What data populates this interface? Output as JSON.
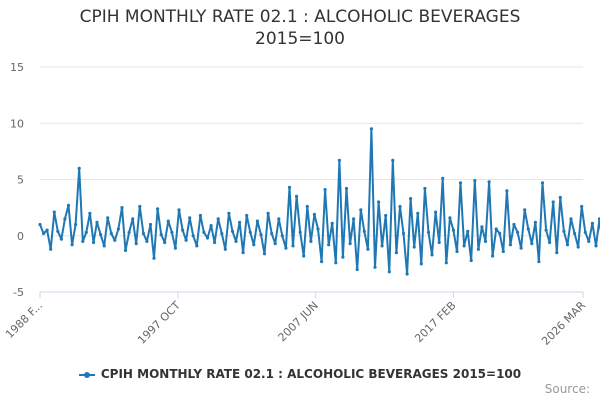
{
  "chart_data": {
    "type": "line",
    "title_line1": "CPIH MONTHLY RATE 02.1 : ALCOHOLIC BEVERAGES",
    "title_line2": "2015=100",
    "xlabel": "",
    "ylabel": "",
    "ylim": [
      -5,
      15
    ],
    "y_ticks": [
      -5,
      0,
      5,
      10,
      15
    ],
    "x_range": [
      1988.08,
      2026.17
    ],
    "x_ticks": [
      {
        "label": "1988 F...",
        "value": 1988.08
      },
      {
        "label": "1997 OCT",
        "value": 1997.75
      },
      {
        "label": "2007 JUN",
        "value": 2007.42
      },
      {
        "label": "2017 FEB",
        "value": 2017.08
      },
      {
        "label": "2026 MAR",
        "value": 2026.17
      }
    ],
    "grid": "horizontal",
    "legend_position": "bottom",
    "color": "#1f78b4",
    "series": [
      {
        "name": "CPIH MONTHLY RATE 02.1 : ALCOHOLIC BEVERAGES 2015=100",
        "start": 1988.08,
        "step": 0.25,
        "values": [
          1.0,
          0.2,
          0.5,
          -1.2,
          2.1,
          0.4,
          -0.3,
          1.5,
          2.7,
          -0.8,
          1.0,
          6.0,
          -0.5,
          0.3,
          2.0,
          -0.6,
          1.2,
          0.1,
          -0.9,
          1.6,
          0.2,
          -0.4,
          0.6,
          2.5,
          -1.3,
          0.3,
          1.5,
          -0.7,
          2.6,
          0.2,
          -0.5,
          1.0,
          -2.0,
          2.4,
          0.1,
          -0.6,
          1.3,
          0.3,
          -1.1,
          2.3,
          0.5,
          -0.4,
          1.6,
          0.0,
          -0.9,
          1.8,
          0.3,
          -0.2,
          0.9,
          -0.6,
          1.5,
          0.2,
          -1.2,
          2.0,
          0.4,
          -0.5,
          1.2,
          -1.5,
          1.8,
          0.3,
          -0.8,
          1.3,
          0.1,
          -1.6,
          2.0,
          0.2,
          -0.7,
          1.5,
          0.0,
          -1.1,
          4.3,
          -0.9,
          3.5,
          0.3,
          -1.8,
          2.6,
          -0.5,
          1.9,
          0.6,
          -2.3,
          4.1,
          -0.8,
          1.1,
          -2.4,
          6.7,
          -1.9,
          4.2,
          -0.7,
          1.5,
          -3.0,
          2.3,
          0.4,
          -1.2,
          9.5,
          -2.8,
          3.0,
          -0.9,
          1.8,
          -3.2,
          6.7,
          -1.5,
          2.6,
          0.2,
          -3.4,
          3.3,
          -1.0,
          2.0,
          -2.5,
          4.2,
          0.3,
          -1.7,
          2.1,
          -0.6,
          5.1,
          -2.4,
          1.6,
          0.5,
          -1.4,
          4.7,
          -0.9,
          0.4,
          -2.2,
          4.9,
          -1.2,
          0.8,
          -0.5,
          4.8,
          -1.8,
          0.6,
          0.2,
          -1.4,
          4.0,
          -0.8,
          1.0,
          0.3,
          -1.1,
          2.3,
          0.6,
          -0.7,
          1.2,
          -2.3,
          4.7,
          0.5,
          -0.6,
          3.0,
          -1.5,
          3.4,
          0.4,
          -0.8,
          1.5,
          0.2,
          -1.0,
          2.6,
          0.3,
          -0.5,
          1.1,
          -0.9,
          1.5,
          -1.4,
          0.6
        ]
      }
    ]
  },
  "legend": {
    "label": "CPIH MONTHLY RATE 02.1 : ALCOHOLIC BEVERAGES 2015=100"
  },
  "credit": "Source:"
}
